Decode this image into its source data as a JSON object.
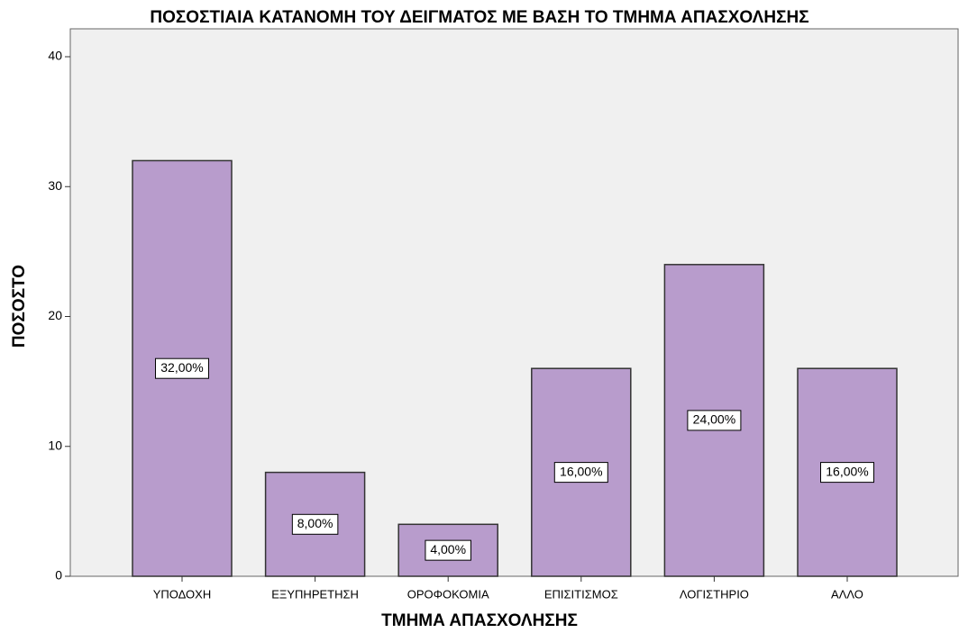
{
  "chart_data": {
    "type": "bar",
    "title": "ΠΟΣΟΣΤΙΑΙΑ ΚΑΤΑΝΟΜΗ ΤΟΥ ΔΕΙΓΜΑΤΟΣ ΜΕ ΒΑΣΗ ΤΟ ΤΜΗΜΑ ΑΠΑΣΧΟΛΗΣΗΣ",
    "x_label": "ΤΜΗΜΑ ΑΠΑΣΧΟΛΗΣΗΣ",
    "y_label": "ΠΟΣΟΣΤΟ",
    "categories": [
      "ΥΠΟΔΟΧΗ",
      "ΕΞΥΠΗΡΕΤΗΣΗ",
      "ΟΡΟΦΟΚΟΜΙΑ",
      "ΕΠΙΣΙΤΙΣΜΟΣ",
      "ΛΟΓΙΣΤΗΡΙΟ",
      "ΑΛΛΟ"
    ],
    "values": [
      32,
      8,
      4,
      16,
      24,
      16
    ],
    "value_labels": [
      "32,00%",
      "8,00%",
      "4,00%",
      "16,00%",
      "24,00%",
      "16,00%"
    ],
    "color": "#b89ccc",
    "ylim": [
      0,
      42.15
    ],
    "yticks": [
      0,
      10,
      20,
      30,
      40
    ],
    "grid": false
  }
}
